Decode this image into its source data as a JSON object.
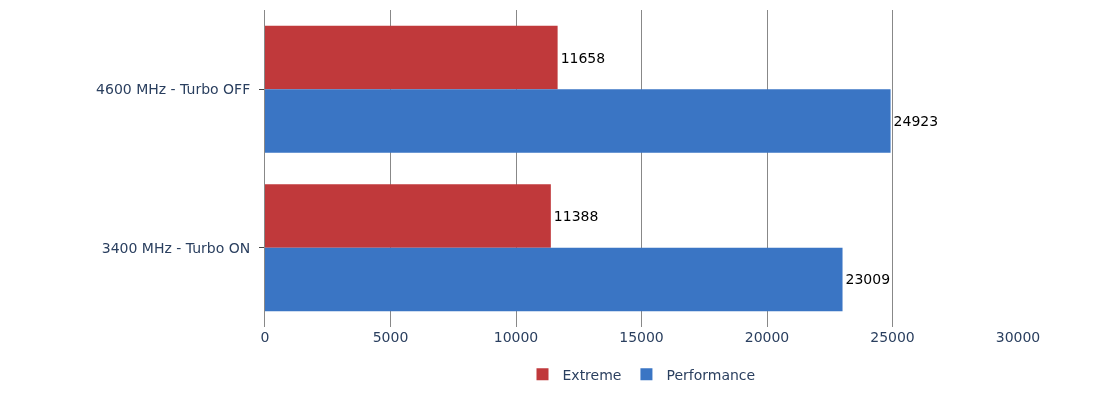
{
  "chart_data": {
    "type": "bar",
    "orientation": "horizontal",
    "categories": [
      "4600 MHz - Turbo OFF",
      "3400 MHz - Turbo ON"
    ],
    "series": [
      {
        "name": "Extreme",
        "color": "#c0393b",
        "values": [
          11658,
          11388
        ]
      },
      {
        "name": "Performance",
        "color": "#3a75c4",
        "values": [
          24923,
          23009
        ]
      }
    ],
    "xlim": [
      0,
      30000
    ],
    "xticks": [
      0,
      5000,
      10000,
      15000,
      20000,
      25000,
      30000
    ],
    "grid": "x",
    "legend": "bottom",
    "data_labels": true
  }
}
